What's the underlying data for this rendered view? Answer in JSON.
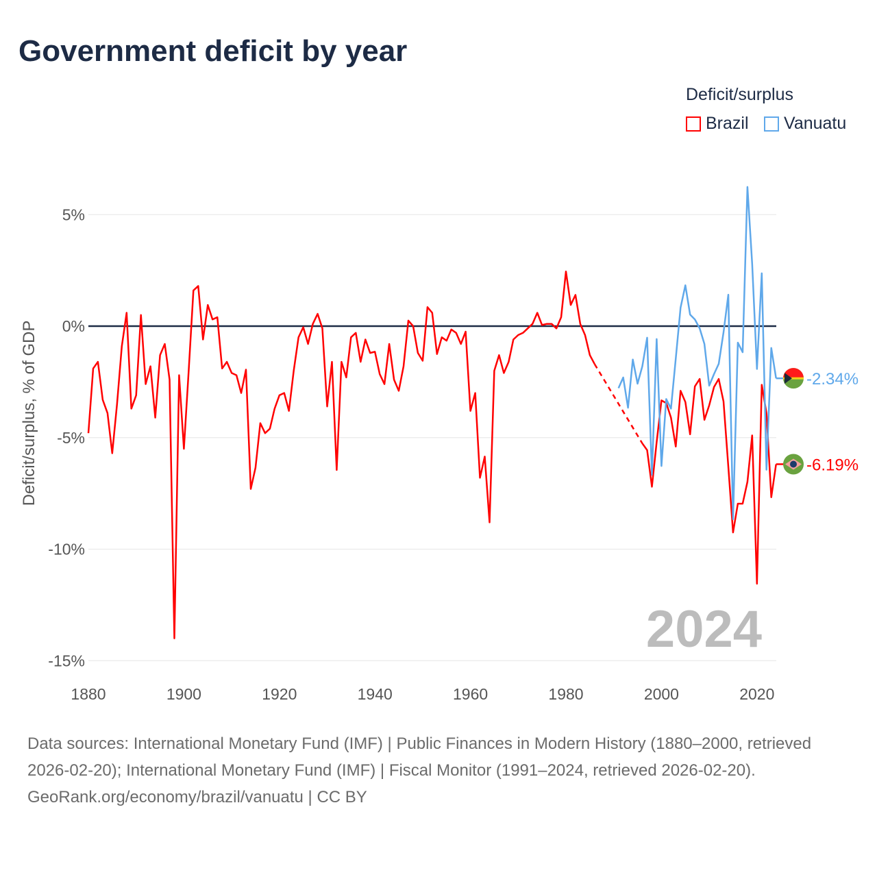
{
  "title": "Government deficit by year",
  "legend": {
    "title": "Deficit/surplus",
    "items": [
      {
        "name": "Brazil",
        "color": "#ff0000"
      },
      {
        "name": "Vanuatu",
        "color": "#5fa8ea"
      }
    ]
  },
  "year_label": "2024",
  "footer": {
    "sources": "Data sources: International Monetary Fund (IMF) | Public Finances in Modern History (1880–2000, retrieved 2026-02-20); International Monetary Fund (IMF) | Fiscal Monitor (1991–2024, retrieved 2026-02-20).",
    "credit": "GeoRank.org/economy/brazil/vanuatu | CC BY"
  },
  "chart_data": {
    "type": "line",
    "title": "Government deficit by year",
    "ylabel": "Deficit/surplus, % of GDP",
    "xlabel": "",
    "xlim": [
      1880,
      2024
    ],
    "ylim": [
      -15,
      6.3
    ],
    "x_ticks": [
      1880,
      1900,
      1920,
      1940,
      1960,
      1980,
      2000,
      2020
    ],
    "y_ticks": [
      {
        "v": 5,
        "label": "5%"
      },
      {
        "v": 0,
        "label": "0%"
      },
      {
        "v": -5,
        "label": "-5%"
      },
      {
        "v": -10,
        "label": "-10%"
      },
      {
        "v": -15,
        "label": "-15%"
      }
    ],
    "series": [
      {
        "name": "Brazil",
        "color": "#ff0000",
        "start_year": 1880,
        "end_label": "-6.19%",
        "values": [
          -4.8,
          -1.9,
          -1.6,
          -3.3,
          -3.9,
          -5.7,
          -3.5,
          -0.9,
          0.6,
          -3.7,
          -3.1,
          0.5,
          -2.6,
          -1.8,
          -4.1,
          -1.3,
          -0.8,
          -2.4,
          -14.0,
          -2.2,
          -5.5,
          -2.0,
          1.6,
          1.8,
          -0.6,
          0.95,
          0.3,
          0.4,
          -1.9,
          -1.6,
          -2.1,
          -2.2,
          -3.0,
          -1.95,
          -7.3,
          -6.35,
          -4.35,
          -4.8,
          -4.6,
          -3.7,
          -3.1,
          -3.0,
          -3.8,
          -2.0,
          -0.5,
          -0.05,
          -0.8,
          0.1,
          0.55,
          -0.1,
          -3.6,
          -1.6,
          -6.45,
          -1.6,
          -2.3,
          -0.5,
          -0.3,
          -1.6,
          -0.6,
          -1.2,
          -1.15,
          -2.15,
          -2.6,
          -0.8,
          -2.4,
          -2.9,
          -1.8,
          0.25,
          0.0,
          -1.2,
          -1.55,
          0.85,
          0.6,
          -1.25,
          -0.5,
          -0.65,
          -0.15,
          -0.3,
          -0.8,
          -0.25,
          -3.8,
          -3.0,
          -6.8,
          -5.85,
          -8.8,
          -2.0,
          -1.3,
          -2.1,
          -1.6,
          -0.6,
          -0.4,
          -0.3,
          -0.1,
          0.1,
          0.6,
          0.05,
          0.1,
          0.1,
          -0.1,
          0.4,
          2.45,
          0.95,
          1.4,
          0.1,
          -0.4,
          -1.3,
          -1.7,
          null,
          null,
          null,
          null,
          null,
          null,
          null,
          null,
          null,
          -5.26,
          -5.56,
          -7.2,
          -5.2,
          -3.33,
          -3.45,
          -4.1,
          -5.4,
          -2.9,
          -3.4,
          -4.85,
          -2.7,
          -2.37,
          -4.2,
          -3.55,
          -2.73,
          -2.37,
          -3.38,
          -6.3,
          -9.25,
          -7.96,
          -7.96,
          -6.98,
          -4.9,
          -11.55,
          -2.63,
          -3.9,
          -7.67,
          -6.19
        ]
      },
      {
        "name": "Vanuatu",
        "color": "#5fa8ea",
        "start_year": 1991,
        "end_label": "-2.34%",
        "values": [
          -2.78,
          -2.3,
          -3.66,
          -1.5,
          -2.58,
          -1.8,
          -0.52,
          -6.67,
          -0.58,
          -6.27,
          -3.27,
          -3.7,
          -1.45,
          0.83,
          1.83,
          0.52,
          0.3,
          -0.1,
          -0.8,
          -2.67,
          -2.15,
          -1.69,
          -0.28,
          1.41,
          -8.66,
          -0.74,
          -1.17,
          6.24,
          2.8,
          -1.92,
          2.37,
          -6.44,
          -0.98,
          -2.34
        ]
      }
    ]
  }
}
